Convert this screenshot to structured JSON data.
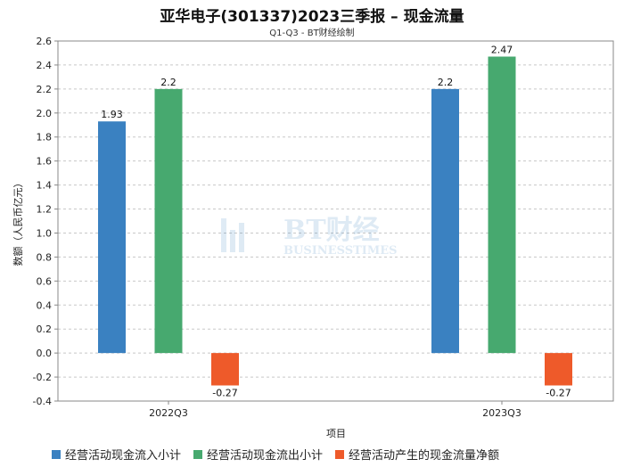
{
  "title": "亚华电子(301337)2023三季报 – 现金流量",
  "subtitle": "Q1-Q3 - BT财经绘制",
  "watermark": {
    "main": "BT财经",
    "sub": "BUSINESSTIMES"
  },
  "colors": {
    "series1": "#3a81c1",
    "series2": "#47a96f",
    "series3": "#ee5a2a",
    "grid": "#c8c8c8"
  },
  "chart_data": {
    "type": "bar",
    "categories": [
      "2022Q3",
      "2023Q3"
    ],
    "series": [
      {
        "name": "经营活动现金流入小计",
        "values": [
          1.93,
          2.2
        ]
      },
      {
        "name": "经营活动现金流出小计",
        "values": [
          2.2,
          2.47
        ]
      },
      {
        "name": "经营活动产生的现金流量净额",
        "values": [
          -0.27,
          -0.27
        ]
      }
    ],
    "value_labels": [
      [
        "1.93",
        "2.2"
      ],
      [
        "2.2",
        "2.47"
      ],
      [
        "-0.27",
        "-0.27"
      ]
    ],
    "xlabel": "项目",
    "ylabel": "数额（人民币亿元）",
    "ylim": [
      -0.4,
      2.6
    ],
    "yticks": [
      "-0.4",
      "-0.2",
      "0.0",
      "0.2",
      "0.4",
      "0.6",
      "0.8",
      "1.0",
      "1.2",
      "1.4",
      "1.6",
      "1.8",
      "2.0",
      "2.2",
      "2.4",
      "2.6"
    ],
    "grid": true,
    "legend_position": "bottom"
  }
}
